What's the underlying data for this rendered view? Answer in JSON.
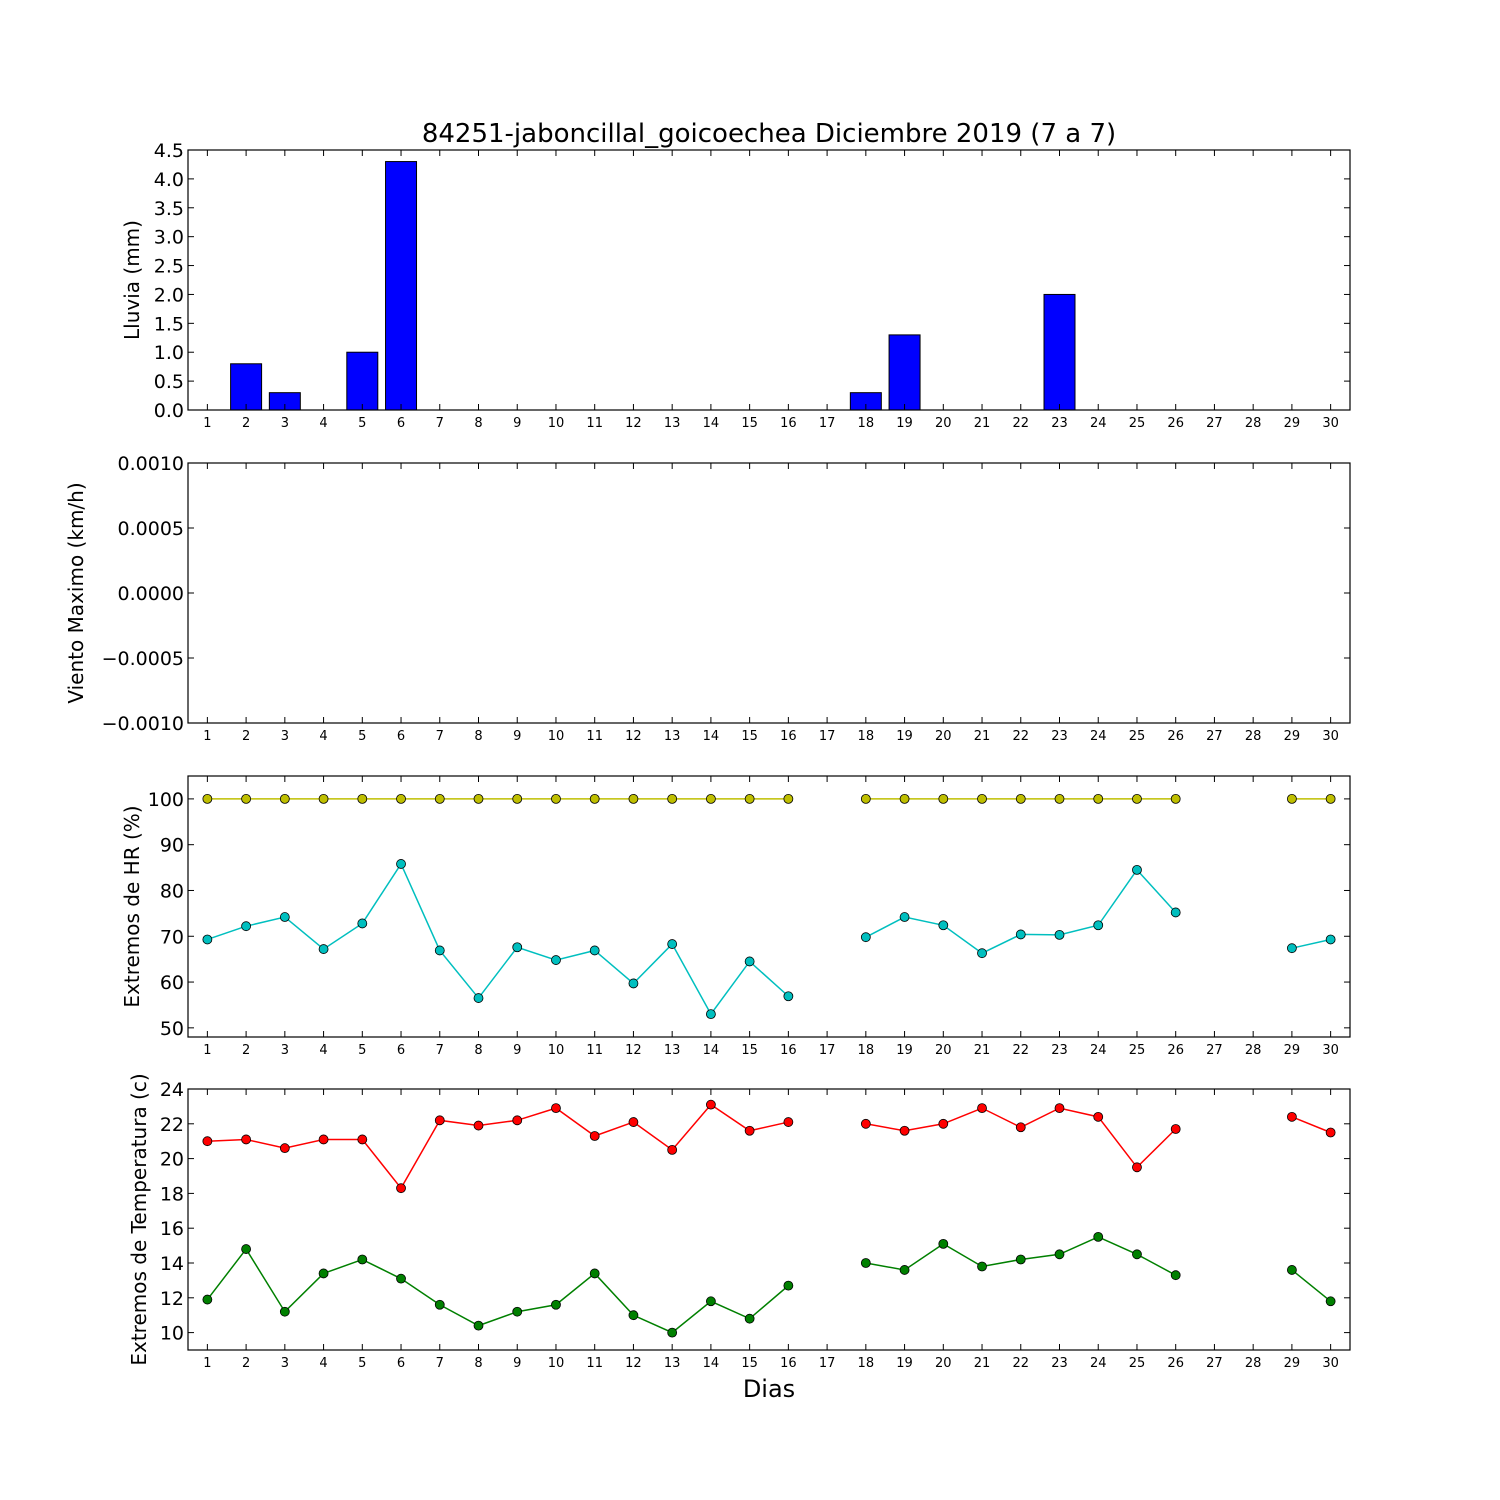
{
  "chart_data": {
    "title": "84251-jaboncillal_goicoechea Diciembre 2019  (7 a 7)",
    "xlabel": "Dias",
    "days": [
      1,
      2,
      3,
      4,
      5,
      6,
      7,
      8,
      9,
      10,
      11,
      12,
      13,
      14,
      15,
      16,
      17,
      18,
      19,
      20,
      21,
      22,
      23,
      24,
      25,
      26,
      27,
      28,
      29,
      30
    ],
    "panels": [
      {
        "type": "bar",
        "ylabel": "Lluvia (mm)",
        "ylim": [
          0,
          4.5
        ],
        "yticks": [
          "0.0",
          "0.5",
          "1.0",
          "1.5",
          "2.0",
          "2.5",
          "3.0",
          "3.5",
          "4.0",
          "4.5"
        ],
        "series": [
          {
            "color": "#0000ff",
            "values": [
              0,
              0.8,
              0.3,
              0,
              1.0,
              4.3,
              0,
              0,
              0,
              0,
              0,
              0,
              0,
              0,
              0,
              0,
              null,
              0.3,
              1.3,
              0,
              0,
              0,
              2.0,
              0,
              0,
              0,
              0,
              0,
              0,
              0
            ]
          }
        ]
      },
      {
        "type": "line",
        "ylabel": "Viento Maximo (km/h)",
        "ylim": [
          -0.001,
          0.001
        ],
        "yticks": [
          "−0.0010",
          "−0.0005",
          "0.0000",
          "0.0005",
          "0.0010"
        ],
        "series": []
      },
      {
        "type": "line",
        "ylabel": "Extremos de HR (%)",
        "ylim": [
          48,
          105
        ],
        "yticks": [
          "50",
          "60",
          "70",
          "80",
          "90",
          "100"
        ],
        "series": [
          {
            "color": "#bfbf00",
            "values": [
              100,
              100,
              100,
              100,
              100,
              100,
              100,
              100,
              100,
              100,
              100,
              100,
              100,
              100,
              100,
              100,
              null,
              100,
              100,
              100,
              100,
              100,
              100,
              100,
              100,
              100,
              null,
              null,
              100,
              100
            ]
          },
          {
            "color": "#00bfbf",
            "values": [
              69.3,
              72.2,
              74.2,
              67.2,
              72.8,
              85.8,
              66.9,
              56.5,
              67.6,
              64.8,
              66.9,
              59.7,
              68.3,
              53.0,
              64.5,
              56.9,
              null,
              69.8,
              74.2,
              72.4,
              66.3,
              70.4,
              70.3,
              72.4,
              84.5,
              75.2,
              null,
              null,
              67.4,
              69.3
            ]
          }
        ]
      },
      {
        "type": "line",
        "ylabel": "Extremos de Temperatura (c)",
        "ylim": [
          9,
          24
        ],
        "yticks": [
          "10",
          "12",
          "14",
          "16",
          "18",
          "20",
          "22",
          "24"
        ],
        "series": [
          {
            "color": "#ff0000",
            "values": [
              21.0,
              21.1,
              20.6,
              21.1,
              21.1,
              18.3,
              22.2,
              21.9,
              22.2,
              22.9,
              21.3,
              22.1,
              20.5,
              23.1,
              21.6,
              22.1,
              null,
              22.0,
              21.6,
              22.0,
              22.9,
              21.8,
              22.9,
              22.4,
              19.5,
              21.7,
              null,
              null,
              22.4,
              21.5
            ]
          },
          {
            "color": "#008000",
            "values": [
              11.9,
              14.8,
              11.2,
              13.4,
              14.2,
              13.1,
              11.6,
              10.4,
              11.2,
              11.6,
              13.4,
              11.0,
              10.0,
              11.8,
              10.8,
              12.7,
              null,
              14.0,
              13.6,
              15.1,
              13.8,
              14.2,
              14.5,
              15.5,
              14.5,
              13.3,
              null,
              null,
              13.6,
              11.8
            ]
          }
        ]
      }
    ]
  }
}
